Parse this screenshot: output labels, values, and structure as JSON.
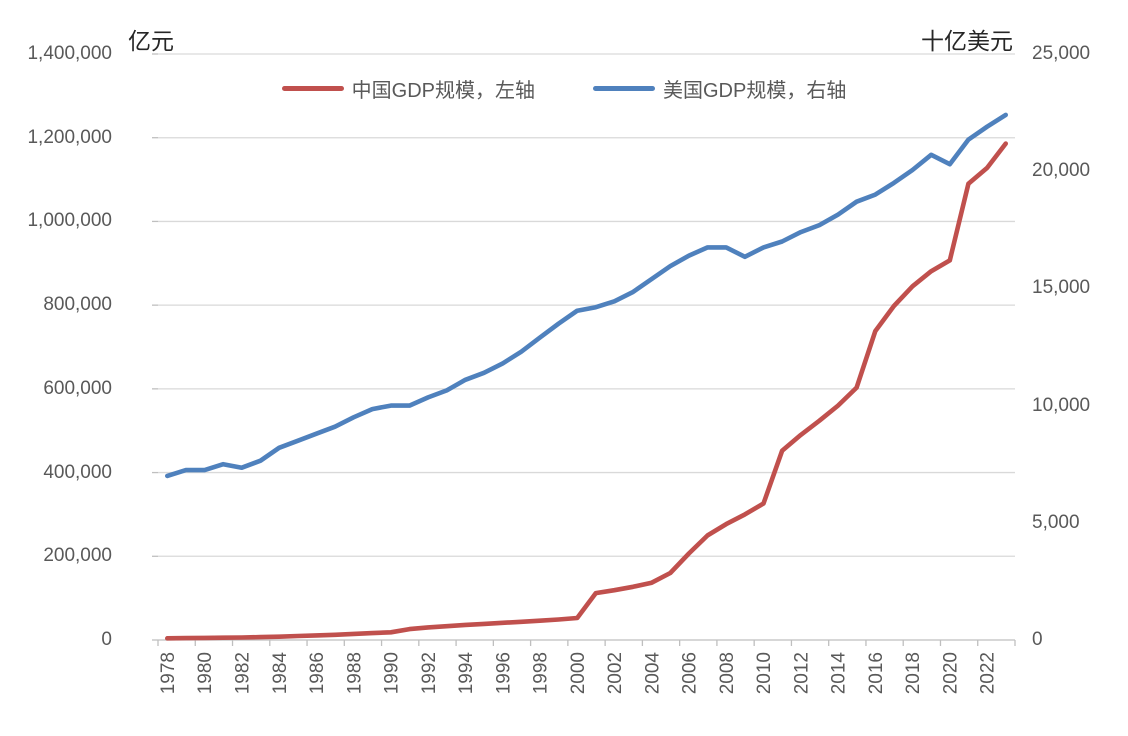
{
  "chart_data": {
    "type": "line",
    "title": "",
    "left_axis": {
      "title": "亿元",
      "min": 0,
      "max": 1400000,
      "step": 200000
    },
    "right_axis": {
      "title": "十亿美元",
      "min": 0,
      "max": 25000,
      "step": 5000
    },
    "x": [
      1978,
      1979,
      1980,
      1981,
      1982,
      1983,
      1984,
      1985,
      1986,
      1987,
      1988,
      1989,
      1990,
      1991,
      1992,
      1993,
      1994,
      1995,
      1996,
      1997,
      1998,
      1999,
      2000,
      2001,
      2002,
      2003,
      2004,
      2005,
      2006,
      2007,
      2008,
      2009,
      2010,
      2011,
      2012,
      2013,
      2014,
      2015,
      2016,
      2017,
      2018,
      2019,
      2020,
      2021,
      2022,
      2023
    ],
    "x_tick_labels": [
      "1978",
      "1980",
      "1982",
      "1984",
      "1986",
      "1988",
      "1990",
      "1992",
      "1994",
      "1996",
      "1998",
      "2000",
      "2002",
      "2004",
      "2006",
      "2008",
      "2010",
      "2012",
      "2014",
      "2016",
      "2018",
      "2020",
      "2022"
    ],
    "series": [
      {
        "name": "中国GDP规模，左轴",
        "axis": "left",
        "color": "#C0504D",
        "values": [
          4000,
          4500,
          5000,
          5500,
          6000,
          7000,
          8000,
          9500,
          11000,
          12500,
          14500,
          16500,
          18500,
          26000,
          30000,
          33000,
          36000,
          38500,
          41000,
          43500,
          46000,
          49000,
          52500,
          112000,
          119000,
          127000,
          137000,
          160000,
          207000,
          250000,
          277000,
          300000,
          326000,
          452000,
          490000,
          524000,
          560000,
          603000,
          738000,
          798000,
          845000,
          881000,
          907000,
          1090000,
          1128000,
          1186000
        ]
      },
      {
        "name": "美国GDP规模，右轴",
        "axis": "right",
        "color": "#4F81BD",
        "values": [
          7000,
          7250,
          7250,
          7500,
          7350,
          7650,
          8200,
          8500,
          8800,
          9100,
          9500,
          9850,
          10000,
          10000,
          10350,
          10650,
          11100,
          11400,
          11800,
          12300,
          12900,
          13500,
          14050,
          14200,
          14450,
          14850,
          15400,
          15950,
          16400,
          16750,
          16750,
          16350,
          16750,
          17000,
          17400,
          17700,
          18150,
          18700,
          19000,
          19500,
          20050,
          20700,
          20300,
          21350,
          21900,
          22400
        ]
      }
    ],
    "legend_position": "top",
    "grid": "horizontal"
  },
  "colors": {
    "gridline": "#D9D9D9",
    "axis_line": "#BFBFBF",
    "tick_text": "#595959",
    "axis_title_text": "#262626"
  }
}
